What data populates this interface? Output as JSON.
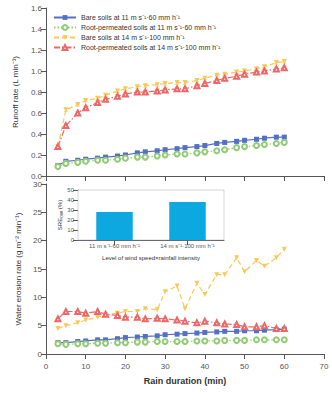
{
  "chart_data": [
    {
      "type": "line",
      "x": [
        3,
        5,
        8,
        10,
        13,
        15,
        18,
        20,
        23,
        25,
        28,
        30,
        33,
        35,
        38,
        40,
        43,
        45,
        48,
        50,
        53,
        55,
        58,
        60
      ],
      "series": [
        {
          "name": "Bare soils at 11 m s⁻¹·60 mm h⁻¹",
          "marker": "square",
          "line_style": "solid",
          "values": [
            0.1,
            0.14,
            0.15,
            0.16,
            0.17,
            0.18,
            0.19,
            0.2,
            0.22,
            0.23,
            0.24,
            0.25,
            0.26,
            0.27,
            0.28,
            0.29,
            0.31,
            0.32,
            0.33,
            0.34,
            0.35,
            0.36,
            0.37,
            0.37
          ],
          "errors": [
            0.015,
            0.015,
            0.015,
            0.015,
            0.015,
            0.015,
            0.015,
            0.015,
            0.015,
            0.015,
            0.015,
            0.015,
            0.015,
            0.015,
            0.015,
            0.015,
            0.015,
            0.015,
            0.015,
            0.015,
            0.015,
            0.015,
            0.015,
            0.015
          ]
        },
        {
          "name": "Root-permeated soils at 11 m s⁻¹·60 mm h⁻¹",
          "marker": "open_circle",
          "line_style": "dotted",
          "values": [
            0.09,
            0.12,
            0.13,
            0.14,
            0.15,
            0.15,
            0.16,
            0.17,
            0.18,
            0.18,
            0.19,
            0.2,
            0.21,
            0.21,
            0.22,
            0.23,
            0.24,
            0.25,
            0.27,
            0.28,
            0.29,
            0.3,
            0.31,
            0.32
          ],
          "errors": [
            0.015,
            0.015,
            0.015,
            0.015,
            0.015,
            0.015,
            0.015,
            0.015,
            0.015,
            0.015,
            0.015,
            0.015,
            0.015,
            0.015,
            0.015,
            0.015,
            0.015,
            0.015,
            0.015,
            0.015,
            0.015,
            0.015,
            0.015,
            0.015
          ]
        },
        {
          "name": "Bare soils at 14 m s⁻¹·100 mm h⁻¹",
          "marker": "triangle_down",
          "line_style": "dashed",
          "values": [
            0.28,
            0.63,
            0.68,
            0.72,
            0.74,
            0.77,
            0.81,
            0.83,
            0.85,
            0.86,
            0.87,
            0.88,
            0.89,
            0.89,
            0.91,
            0.93,
            0.96,
            0.97,
            0.99,
            1.0,
            1.02,
            1.04,
            1.08,
            1.09
          ],
          "errors": [
            0.015,
            0.015,
            0.015,
            0.015,
            0.015,
            0.015,
            0.015,
            0.015,
            0.015,
            0.015,
            0.015,
            0.015,
            0.015,
            0.015,
            0.015,
            0.015,
            0.015,
            0.015,
            0.015,
            0.015,
            0.015,
            0.015,
            0.015,
            0.015
          ]
        },
        {
          "name": "Root-permeated soils at 14 m s⁻¹·100 mm h⁻¹",
          "marker": "open_triangle_up",
          "line_style": "dashdot",
          "values": [
            0.28,
            0.48,
            0.6,
            0.65,
            0.7,
            0.73,
            0.76,
            0.78,
            0.8,
            0.8,
            0.81,
            0.82,
            0.83,
            0.83,
            0.86,
            0.88,
            0.91,
            0.93,
            0.95,
            0.97,
            0.99,
            1.0,
            1.02,
            1.03
          ],
          "errors": [
            0.015,
            0.015,
            0.015,
            0.015,
            0.015,
            0.015,
            0.015,
            0.015,
            0.015,
            0.015,
            0.015,
            0.015,
            0.015,
            0.015,
            0.015,
            0.015,
            0.015,
            0.015,
            0.015,
            0.015,
            0.015,
            0.015,
            0.015,
            0.015
          ]
        }
      ],
      "ylabel": "Runoff rate (L min⁻¹)",
      "xlim": [
        0,
        70
      ],
      "xticks": [
        0,
        10,
        20,
        30,
        40,
        50,
        60,
        70
      ],
      "ylim": [
        0.0,
        1.6
      ],
      "yticks": [
        {
          "value": 0,
          "label": "0.0"
        },
        0.2,
        0.4,
        0.6,
        0.8,
        {
          "value": 1,
          "label": "1.0"
        },
        1.2,
        1.4,
        1.6
      ],
      "tick_labels": "y",
      "legend": "upper left",
      "grid": false
    },
    {
      "type": "line",
      "x": [
        3,
        5,
        8,
        10,
        13,
        15,
        18,
        20,
        23,
        25,
        28,
        30,
        33,
        35,
        38,
        40,
        43,
        45,
        48,
        50,
        53,
        55,
        58,
        60
      ],
      "series": [
        {
          "marker": "square",
          "line_style": "solid",
          "values": [
            2.0,
            2.0,
            2.2,
            2.3,
            2.5,
            2.5,
            2.7,
            2.9,
            3.0,
            3.1,
            3.2,
            3.4,
            3.5,
            3.6,
            3.7,
            3.8,
            3.9,
            4.0,
            4.0,
            4.1,
            4.1,
            4.2,
            4.3,
            4.4
          ]
        },
        {
          "marker": "open_circle",
          "line_style": "dotted",
          "values": [
            1.8,
            1.7,
            1.8,
            1.8,
            1.9,
            1.9,
            2.0,
            2.0,
            2.1,
            2.1,
            2.2,
            2.2,
            2.2,
            2.2,
            2.3,
            2.3,
            2.3,
            2.4,
            2.4,
            2.4,
            2.5,
            2.5,
            2.5,
            2.5
          ]
        },
        {
          "marker": "triangle_down",
          "line_style": "dashed",
          "values": [
            4.5,
            5.0,
            5.5,
            6.0,
            6.5,
            7.0,
            7.2,
            7.5,
            7.5,
            8.0,
            7.8,
            11.0,
            12.0,
            8.0,
            12.5,
            10.5,
            14.0,
            14.0,
            17.0,
            14.5,
            16.5,
            15.5,
            17.0,
            18.5
          ]
        },
        {
          "marker": "open_triangle_up",
          "line_style": "dashdot",
          "values": [
            6.2,
            7.5,
            7.5,
            7.2,
            7.5,
            7.0,
            6.8,
            6.5,
            6.5,
            6.2,
            6.3,
            6.2,
            6.0,
            5.8,
            5.5,
            5.8,
            5.5,
            5.3,
            5.2,
            4.8,
            4.8,
            5.0,
            4.5,
            4.5
          ]
        }
      ],
      "xlabel": "Rain duration (min)",
      "ylabel": "Water erosion rate (g m⁻² min⁻¹)",
      "xlim": [
        0,
        70
      ],
      "xticks": [
        0,
        10,
        20,
        30,
        40,
        50,
        60,
        70
      ],
      "ylim": [
        0,
        30
      ],
      "yticks": [
        0,
        5,
        10,
        15,
        20,
        25,
        30
      ],
      "grid": false
    },
    {
      "type": "bar",
      "categories": [
        "11 m s⁻¹·60 mm h⁻¹",
        "14 m s⁻¹·100 mm h⁻¹"
      ],
      "values": [
        28,
        38
      ],
      "xlabel": "Level of wind speed×rainfall intensity",
      "ylabel": "SRE₀₀ₜₜ (%)",
      "ylim": [
        0,
        50
      ],
      "yticks": [
        0,
        10,
        20,
        30,
        40,
        50
      ],
      "grid": false
    }
  ]
}
